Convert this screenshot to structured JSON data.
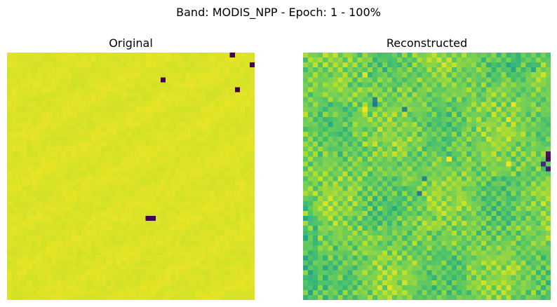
{
  "figure": {
    "suptitle": "Band: MODIS_NPP - Epoch: 1 - 100%"
  },
  "chart_data": [
    {
      "type": "heatmap",
      "title": "Original",
      "grid_size": 50,
      "colormap": "viridis",
      "axes": "off",
      "base_value": 0.97,
      "texture": "smooth-subtle",
      "outliers": [
        {
          "row": 0,
          "col": 45,
          "value": 0.0
        },
        {
          "row": 2,
          "col": 49,
          "value": 0.0
        },
        {
          "row": 5,
          "col": 31,
          "value": 0.0
        },
        {
          "row": 7,
          "col": 46,
          "value": 0.0
        },
        {
          "row": 33,
          "col": 28,
          "value": 0.0
        },
        {
          "row": 33,
          "col": 29,
          "value": 0.0
        }
      ]
    },
    {
      "type": "heatmap",
      "title": "Reconstructed",
      "grid_size": 50,
      "colormap": "viridis",
      "axes": "off",
      "base_value": 0.78,
      "texture": "checkerboard-noisy",
      "outliers": [
        {
          "row": 20,
          "col": 49,
          "value": 0.05
        },
        {
          "row": 21,
          "col": 49,
          "value": 0.02
        },
        {
          "row": 22,
          "col": 48,
          "value": 0.12
        },
        {
          "row": 23,
          "col": 49,
          "value": 0.08
        },
        {
          "row": 9,
          "col": 14,
          "value": 0.45
        },
        {
          "row": 10,
          "col": 14,
          "value": 0.4
        },
        {
          "row": 11,
          "col": 20,
          "value": 0.45
        },
        {
          "row": 25,
          "col": 24,
          "value": 0.45
        },
        {
          "row": 28,
          "col": 23,
          "value": 0.4
        },
        {
          "row": 4,
          "col": 12,
          "value": 0.95
        },
        {
          "row": 11,
          "col": 12,
          "value": 0.98
        },
        {
          "row": 21,
          "col": 29,
          "value": 1.0
        },
        {
          "row": 22,
          "col": 41,
          "value": 0.98
        },
        {
          "row": 10,
          "col": 42,
          "value": 0.97
        },
        {
          "row": 13,
          "col": 41,
          "value": 0.97
        }
      ]
    }
  ]
}
